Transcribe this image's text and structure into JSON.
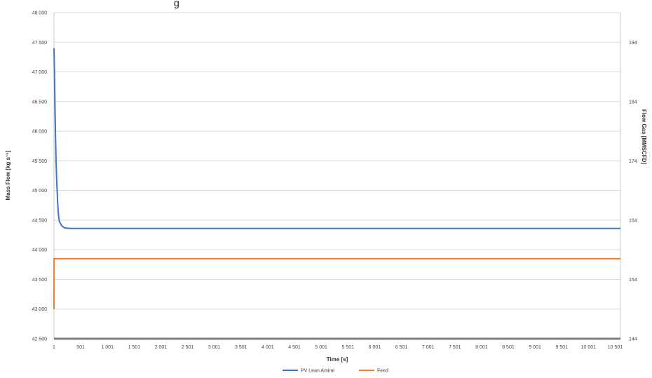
{
  "chart_data": {
    "type": "line",
    "title_fragment": "g",
    "xlabel": "Time [s]",
    "ylabel_left": "Mass Flow [kg s⁻¹]",
    "ylabel_right": "Flow Gas [MMSCFD]",
    "xlim": [
      1,
      10600
    ],
    "ylim_left": [
      42500,
      48000
    ],
    "ylim_right": [
      144,
      199
    ],
    "x_ticks": [
      1,
      501,
      1001,
      1501,
      2001,
      2501,
      3001,
      3501,
      4001,
      4501,
      5001,
      5501,
      6001,
      6501,
      7001,
      7501,
      8001,
      8501,
      9001,
      9501,
      10001,
      10501
    ],
    "x_tick_labels": [
      "1",
      "501",
      "1 001",
      "1 501",
      "2 001",
      "2 501",
      "3 001",
      "3 501",
      "4 001",
      "4 501",
      "5 001",
      "5 501",
      "6 001",
      "6 501",
      "7 001",
      "7 501",
      "8 001",
      "8 501",
      "9 001",
      "9 501",
      "10 001",
      "10 501"
    ],
    "y_left_ticks": [
      42500,
      43000,
      43500,
      44000,
      44500,
      45000,
      45500,
      46000,
      46500,
      47000,
      47500,
      48000
    ],
    "y_left_tick_labels": [
      "42 500",
      "43 000",
      "43 500",
      "44 000",
      "44 500",
      "45 000",
      "45 500",
      "46 000",
      "46 500",
      "47 000",
      "47 500",
      "48 000"
    ],
    "y_right_ticks": [
      144,
      154,
      164,
      174,
      184,
      194
    ],
    "y_right_tick_labels": [
      "144",
      "154",
      "164",
      "174",
      "184",
      "194"
    ],
    "grid": true,
    "legend_position": "bottom-center",
    "series": [
      {
        "name": "PV Lean Amine",
        "axis": "left",
        "color": "#4472C4",
        "x": [
          1,
          10,
          20,
          30,
          40,
          50,
          60,
          70,
          80,
          90,
          100,
          150,
          200,
          300,
          500,
          1000,
          10600
        ],
        "y": [
          47400,
          47000,
          46400,
          45900,
          45500,
          45200,
          45000,
          44800,
          44650,
          44550,
          44480,
          44400,
          44370,
          44360,
          44360,
          44360,
          44360
        ]
      },
      {
        "name": "Feed",
        "axis": "right",
        "color": "#ED7D31",
        "x": [
          1,
          2,
          10600
        ],
        "y": [
          149,
          157.5,
          157.5
        ]
      }
    ]
  }
}
